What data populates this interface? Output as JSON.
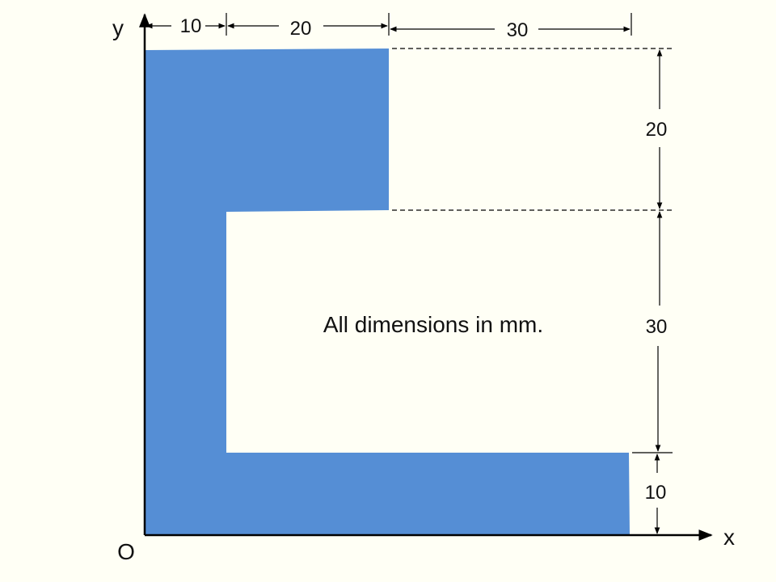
{
  "diagram": {
    "axes": {
      "x_label": "x",
      "y_label": "y",
      "origin_label": "O"
    },
    "note": "All dimensions in mm.",
    "dimensions": {
      "top_flange_thickness": "10",
      "top_flange_inner": "20",
      "top_gap": "30",
      "right_upper": "20",
      "right_middle": "30",
      "right_lower": "10"
    },
    "colors": {
      "shape_fill": "#558ed5",
      "background": "#fffff5",
      "line": "#000000"
    }
  }
}
